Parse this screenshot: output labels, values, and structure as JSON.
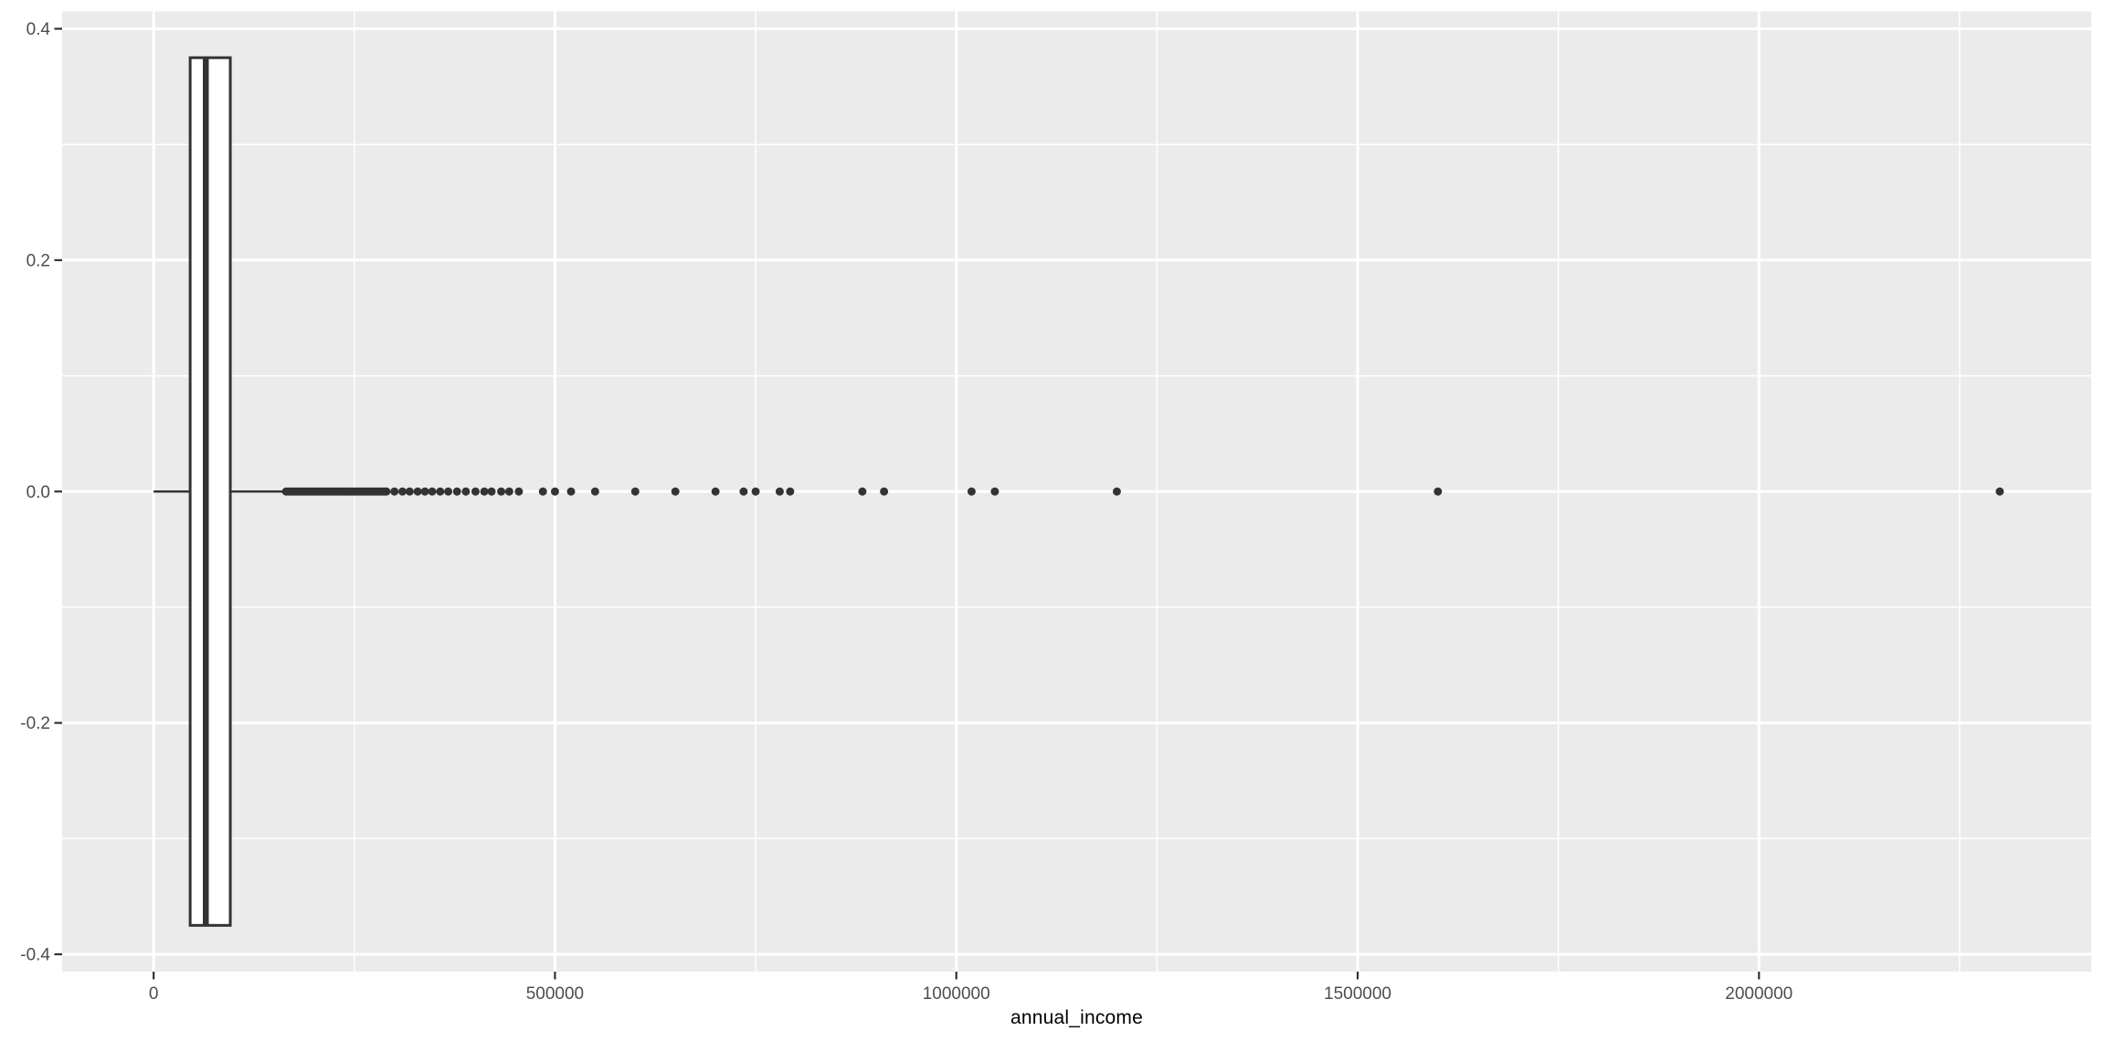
{
  "figure": {
    "xlabel": "annual_income",
    "background_color": "#FFFFFF",
    "panel_background_color": "#EBEBEB",
    "grid_color": "#FFFFFF",
    "geom_color": "#333333",
    "tick_text_color": "#4D4D4D",
    "title_text_color": "#000000"
  },
  "chart_data": {
    "type": "boxplot",
    "orientation": "horizontal",
    "variable": "annual_income",
    "title": "",
    "xlabel": "annual_income",
    "ylabel": "",
    "grid": "on",
    "legend": "none",
    "xlim": [
      -114000,
      2414000
    ],
    "ylim": [
      -0.415,
      0.415
    ],
    "x_ticks": [
      0,
      500000,
      1000000,
      1500000,
      2000000
    ],
    "x_tick_labels": [
      "0",
      "500000",
      "1000000",
      "1500000",
      "2000000"
    ],
    "x_minor_ticks": [
      250000,
      750000,
      1250000,
      1750000,
      2250000
    ],
    "y_ticks": [
      0.4,
      0.2,
      0.0,
      -0.2,
      -0.4
    ],
    "y_tick_labels": [
      "0.4",
      "0.2",
      "0.0",
      "-0.2",
      "-0.4"
    ],
    "y_minor_ticks": [
      0.3,
      0.1,
      -0.1,
      -0.3
    ],
    "box": {
      "whisker_min": 0,
      "q1": 45500,
      "median": 65000,
      "q3": 95500,
      "whisker_max": 165000,
      "center_y": 0,
      "half_width": 0.375
    },
    "outliers": [
      165000,
      167500,
      170000,
      172500,
      175000,
      177500,
      180000,
      182500,
      185000,
      187500,
      190000,
      192500,
      195000,
      197500,
      200000,
      202500,
      205000,
      207500,
      210000,
      212500,
      215000,
      217500,
      220000,
      222500,
      225000,
      227500,
      230000,
      232500,
      235000,
      237500,
      240000,
      242500,
      245000,
      247500,
      250000,
      252500,
      255000,
      257500,
      260000,
      262500,
      265000,
      267500,
      270000,
      272500,
      275000,
      277500,
      280000,
      282500,
      285000,
      287500,
      290000,
      300000,
      310000,
      319000,
      329000,
      338000,
      347000,
      357000,
      367000,
      378000,
      389000,
      401000,
      412000,
      421000,
      433000,
      443000,
      455000,
      485000,
      500000,
      520000,
      550000,
      600000,
      650000,
      700000,
      735000,
      750000,
      780000,
      793000,
      883000,
      910000,
      1019000,
      1048000,
      1200000,
      1600000,
      2300000
    ]
  }
}
